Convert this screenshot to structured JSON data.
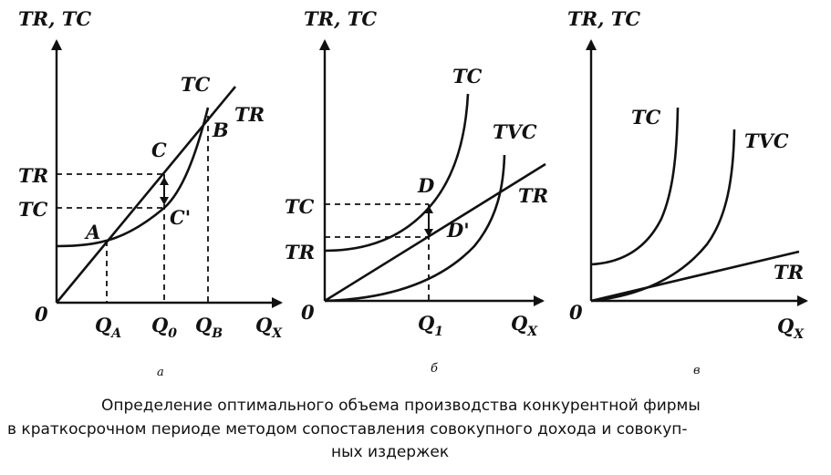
{
  "panel_a": {
    "y_axis": "TR,  TC",
    "x_axis": "Q",
    "x_axis_sub": "X",
    "origin": "0",
    "curve_tc": "TC",
    "curve_tr": "TR",
    "y_tr": "TR",
    "y_tc": "TC",
    "point_a": "A",
    "point_b": "B",
    "point_c": "C",
    "point_c2": "C'",
    "q_a": "Q",
    "q_a_sub": "A",
    "q_0": "Q",
    "q_0_sub": "0",
    "q_b": "Q",
    "q_b_sub": "B",
    "panel_label": "а"
  },
  "panel_b": {
    "y_axis": "TR,  TC",
    "x_axis": "Q",
    "x_axis_sub": "X",
    "origin": "0",
    "curve_tc": "TC",
    "curve_tvc": "TVC",
    "curve_tr": "TR",
    "y_tc": "TC",
    "y_tr": "TR",
    "point_d": "D",
    "point_d2": "D'",
    "q_1": "Q",
    "q_1_sub": "1",
    "panel_label": "б"
  },
  "panel_c": {
    "y_axis": "TR,  TC",
    "x_axis": "Q",
    "x_axis_sub": "X",
    "origin": "0",
    "curve_tc": "TC",
    "curve_tvc": "TVC",
    "curve_tr": "TR",
    "panel_label": "в"
  },
  "caption": {
    "line1": "Определение оптимального объема производства конкурентной фирмы",
    "line2": "в краткосрочном периоде методом сопоставления совокупного дохода и совокуп-",
    "line3": "ных издержек"
  }
}
